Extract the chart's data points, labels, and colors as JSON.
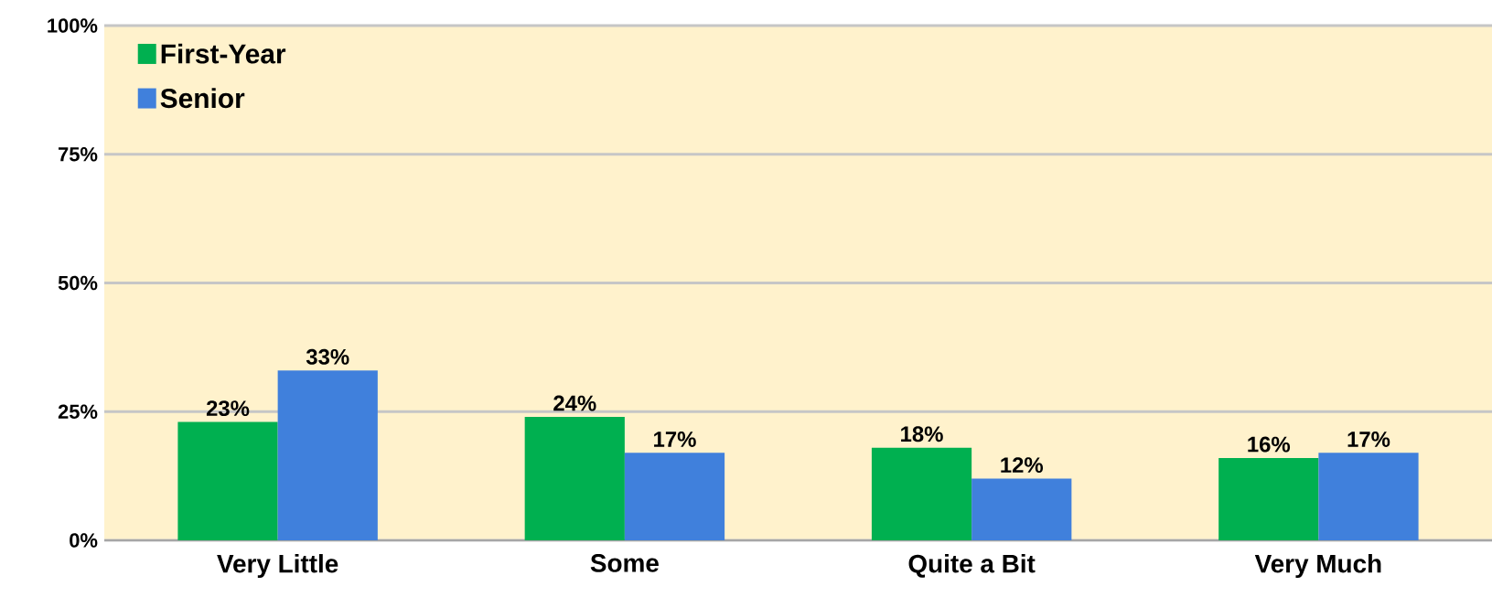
{
  "chart_data": {
    "type": "bar",
    "categories": [
      "Very Little",
      "Some",
      "Quite a Bit",
      "Very Much"
    ],
    "series": [
      {
        "name": "First-Year",
        "color": "#00b050",
        "values": [
          23,
          24,
          18,
          16
        ]
      },
      {
        "name": "Senior",
        "color": "#4080dc",
        "values": [
          33,
          17,
          12,
          17
        ]
      }
    ],
    "ylim": [
      0,
      100
    ],
    "yticks": [
      {
        "value": 0,
        "label": "0%"
      },
      {
        "value": 25,
        "label": "25%"
      },
      {
        "value": 50,
        "label": "50%"
      },
      {
        "value": 75,
        "label": "75%"
      },
      {
        "value": 100,
        "label": "100%"
      }
    ],
    "value_labels": [
      [
        "23%",
        "24%",
        "18%",
        "16%"
      ],
      [
        "33%",
        "17%",
        "12%",
        "17%"
      ]
    ],
    "grid": "y",
    "legend": "top left"
  }
}
